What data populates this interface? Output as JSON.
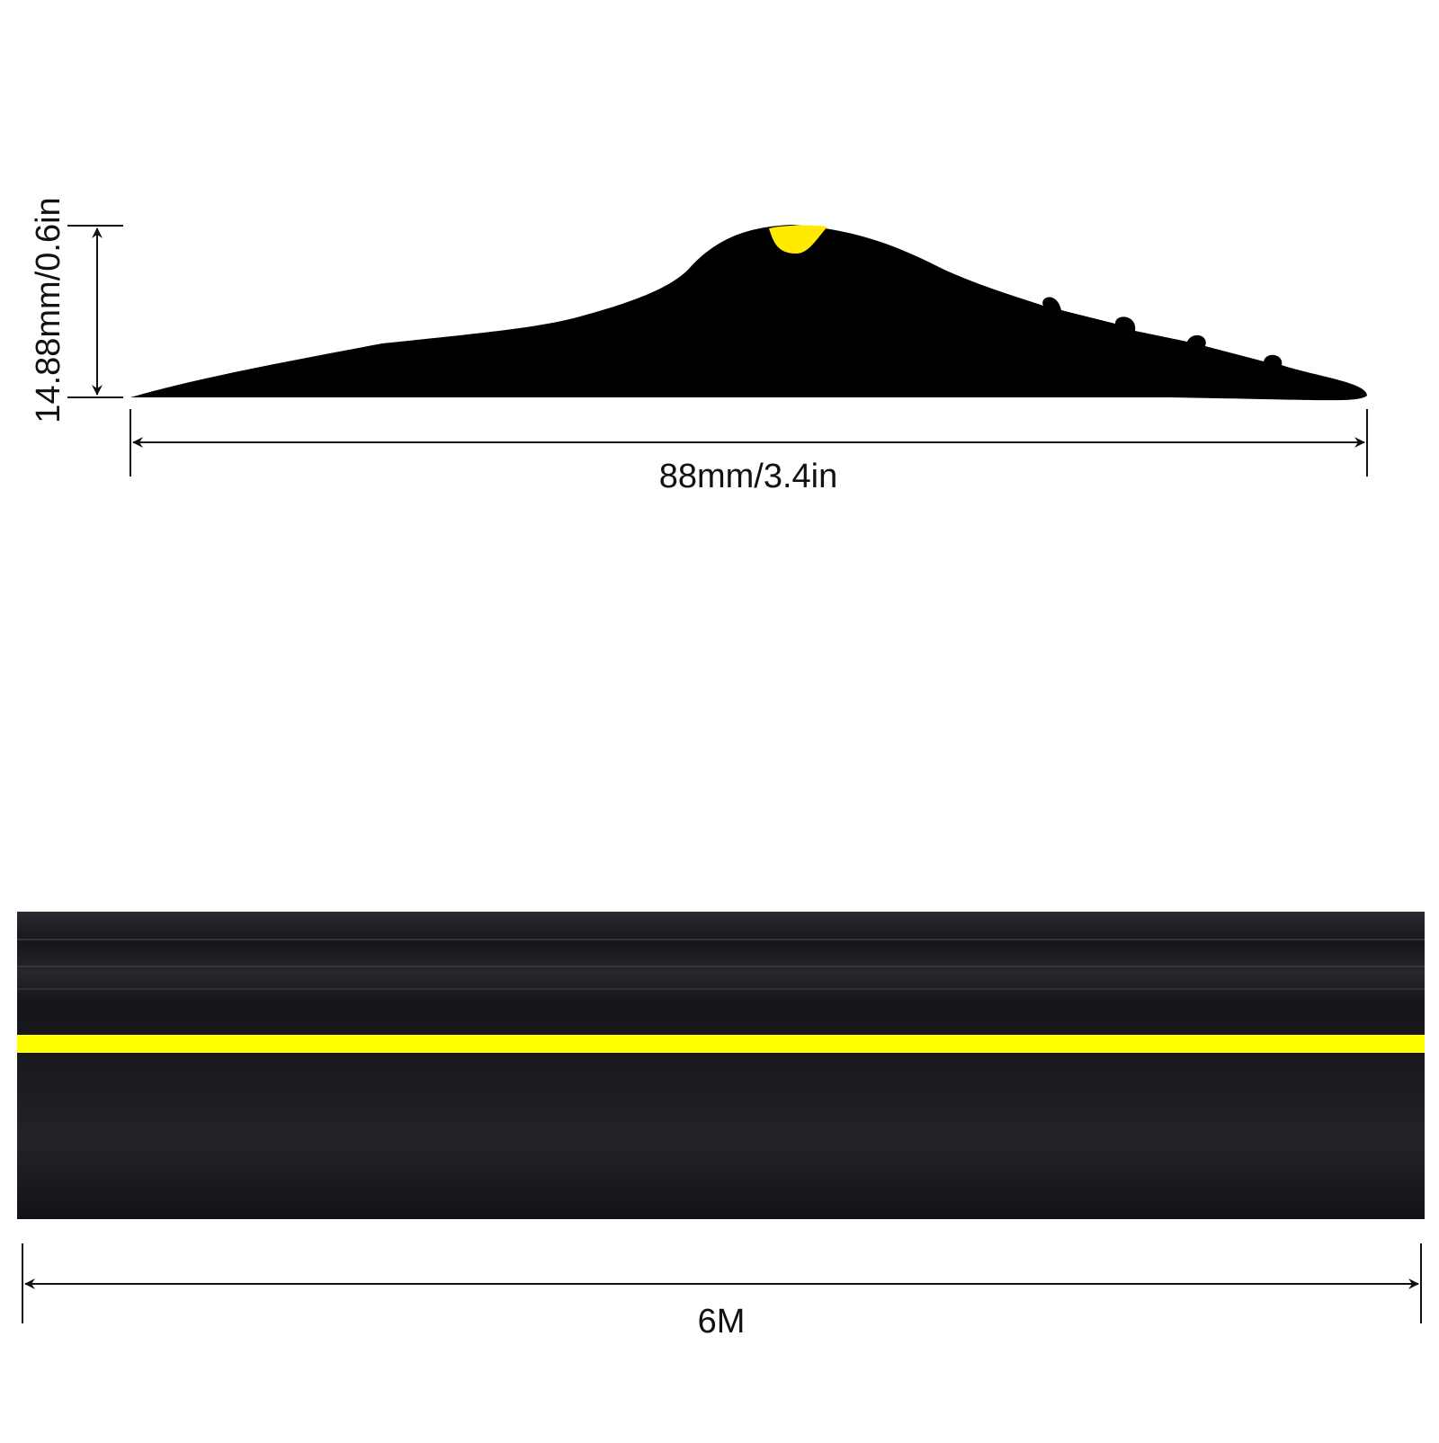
{
  "dimensions": {
    "height": "14.88mm/0.6in",
    "width": "88mm/3.4in",
    "length": "6M"
  }
}
